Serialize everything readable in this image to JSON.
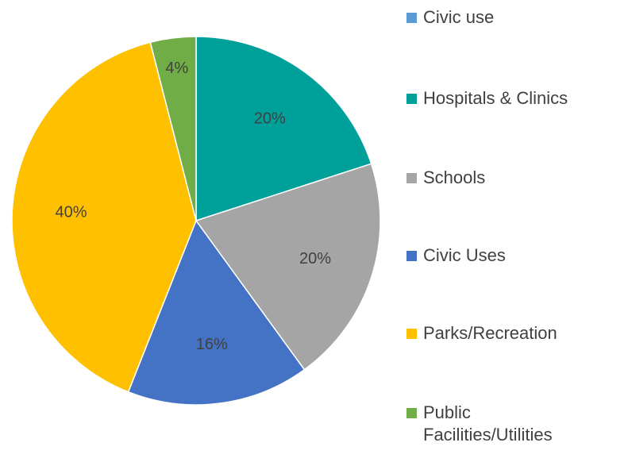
{
  "chart_data": {
    "type": "pie",
    "categories": [
      "Civic use",
      "Hospitals & Clinics",
      "Schools",
      "Civic Uses",
      "Parks/Recreation",
      "Public Facilities/Utilities"
    ],
    "values": [
      0,
      20,
      20,
      16,
      40,
      4
    ],
    "value_labels": [
      null,
      "20%",
      "20%",
      "16%",
      "40%",
      "4%"
    ],
    "colors": [
      "#5b9bd5",
      "#00a09a",
      "#a5a5a5",
      "#4472c4",
      "#ffc000",
      "#70ad47"
    ],
    "legend": "right"
  }
}
